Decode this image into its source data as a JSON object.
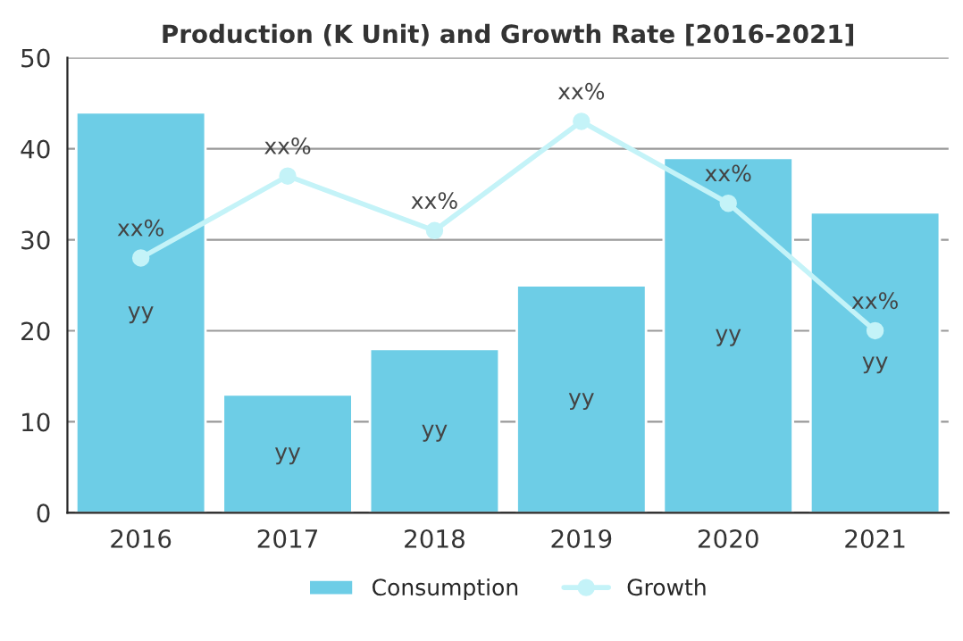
{
  "chart_data": {
    "type": "bar",
    "title": "Production (K Unit) and Growth Rate [2016-2021]",
    "categories": [
      "2016",
      "2017",
      "2018",
      "2019",
      "2020",
      "2021"
    ],
    "series": [
      {
        "name": "Consumption",
        "color": "#6dcde6",
        "values": [
          44,
          13,
          18,
          25,
          39,
          33
        ],
        "value_labels": [
          "yy",
          "yy",
          "yy",
          "yy",
          "yy",
          "yy"
        ]
      },
      {
        "name": "Growth",
        "type": "line",
        "color": "#c4f3f8",
        "marker": "circle",
        "values": [
          28,
          37,
          31,
          43,
          34,
          20
        ],
        "value_labels": [
          "xx%",
          "xx%",
          "xx%",
          "xx%",
          "xx%",
          "xx%"
        ]
      }
    ],
    "ylim": [
      0,
      50
    ],
    "yticks": [
      0,
      10,
      20,
      30,
      40,
      50
    ],
    "grid": "y",
    "legend": "bottom"
  }
}
